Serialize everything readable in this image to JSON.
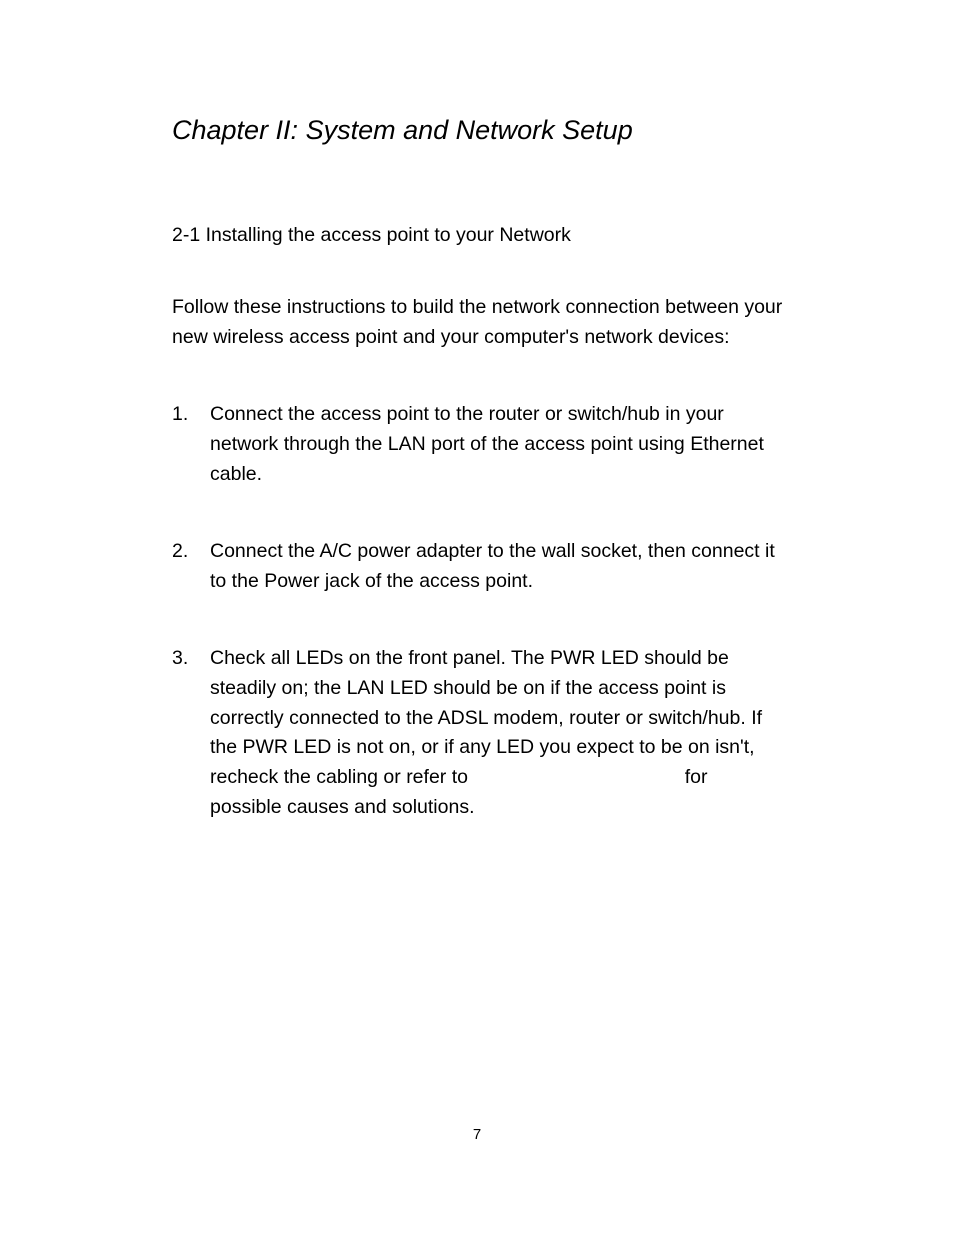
{
  "document": {
    "chapter_title": "Chapter II: System and Network Setup",
    "section_title": "2-1 Installing the access point to your Network",
    "intro_text": "Follow these instructions to build the network connection between your new wireless access point and your computer's network devices:",
    "list_items": [
      {
        "number": "1.",
        "text": "Connect the access point to the router or switch/hub in your network through the LAN port of the access point using Ethernet cable."
      },
      {
        "number": "2.",
        "text": "Connect the A/C power adapter to the wall socket, then connect it to the Power jack of the access point."
      },
      {
        "number": "3.",
        "text_part1": "Check all LEDs on the front panel. The PWR LED should be steadily on; the LAN LED should be on if the access point is correctly connected to the ADSL modem, router or switch/hub. If the PWR LED is not on, or if any LED you expect to be on isn't, recheck the cabling or refer to",
        "text_part2": "for possible causes and solutions."
      }
    ],
    "page_number": "7",
    "background_color": "#ffffff",
    "text_color": "#000000",
    "title_font_size": 27,
    "body_font_size": 19.5,
    "page_number_font_size": 15
  }
}
